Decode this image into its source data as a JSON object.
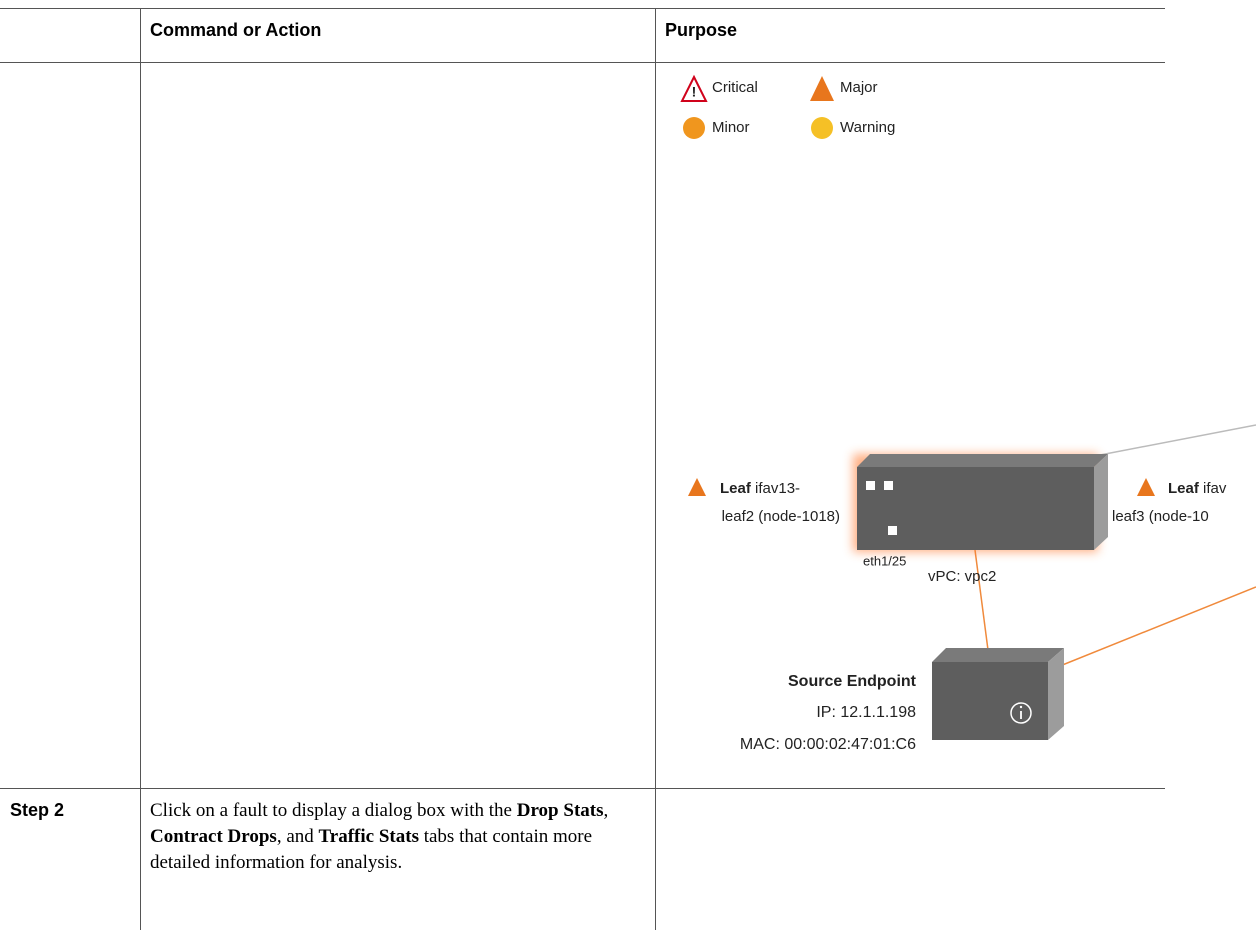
{
  "table": {
    "header": [
      "Command or Action",
      "Purpose"
    ],
    "rows": [
      {
        "diagram": {
          "legend": [
            "Critical",
            "Major",
            "Minor",
            "Warning"
          ],
          "leafs": [
            {
              "kind": "Leaf",
              "name": "ifav13-",
              "detail": "leaf2 (node-1018)"
            },
            {
              "kind": "Leaf",
              "name": "ifav",
              "detail": "leaf3 (node-10"
            }
          ],
          "port": "eth1/25",
          "vpc": "vPC: vpc2",
          "endpoint": {
            "title": "Source Endpoint",
            "ip": "IP: 12.1.1.198",
            "mac": "MAC: 00:00:02:47:01:C6"
          }
        }
      },
      {
        "step": "Step 2",
        "command": [
          {
            "text": "Click on a fault to display a dialog box with the ",
            "bold": false
          },
          {
            "text": "Drop Stats",
            "bold": true
          },
          {
            "text": ", ",
            "bold": false
          },
          {
            "text": "Contract Drops",
            "bold": true
          },
          {
            "text": ", and ",
            "bold": false
          },
          {
            "text": "Traffic Stats",
            "bold": true
          },
          {
            "text": " tabs that contain more detailed information for analysis.",
            "bold": false
          }
        ]
      }
    ]
  }
}
